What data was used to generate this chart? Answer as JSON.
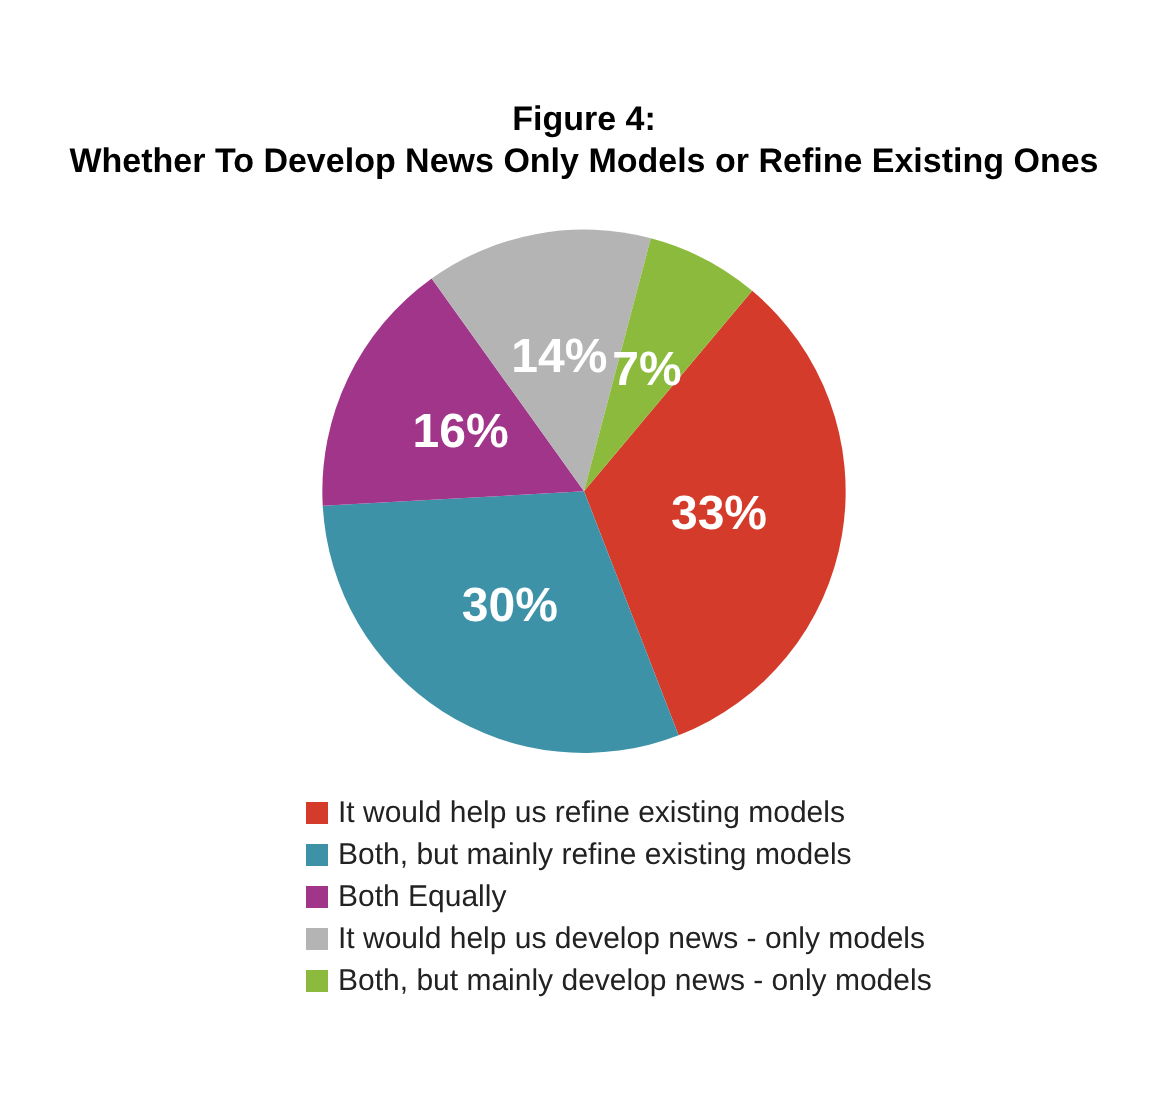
{
  "chart_data": {
    "type": "pie",
    "title": "Figure 4:",
    "subtitle": "Whether To Develop News Only Models or Refine Existing Ones",
    "categories": [
      "It would help us refine existing models",
      "Both, but mainly refine existing models",
      "Both Equally",
      "It would help us develop news - only models",
      "Both, but mainly develop news - only models"
    ],
    "values": [
      33,
      30,
      16,
      14,
      7
    ],
    "value_labels": [
      "33%",
      "30%",
      "16%",
      "14%",
      "7%"
    ],
    "colors": [
      "#d43b2b",
      "#3e92a8",
      "#a0358a",
      "#b4b4b5",
      "#8cba3c"
    ],
    "legend": "bottom"
  }
}
